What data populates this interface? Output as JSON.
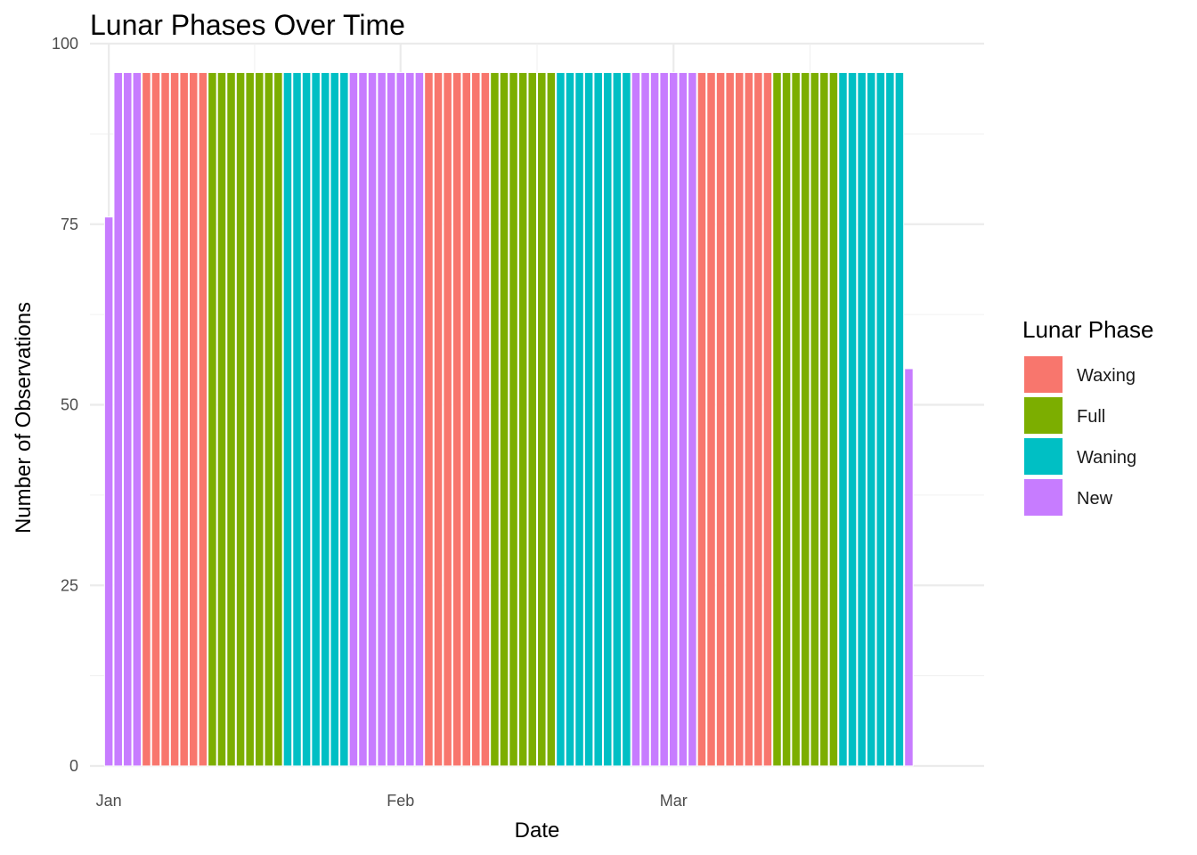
{
  "chart_data": {
    "type": "bar",
    "title": "Lunar Phases Over Time",
    "xlabel": "Date",
    "ylabel": "Number of Observations",
    "ylim": [
      0,
      100
    ],
    "y_ticks": [
      0,
      25,
      50,
      75,
      100
    ],
    "x_ticks": [
      {
        "date": "2024-01-01",
        "label": "Jan"
      },
      {
        "date": "2024-02-01",
        "label": "Feb"
      },
      {
        "date": "2024-03-01",
        "label": "Mar"
      }
    ],
    "x_range": [
      "2023-12-30",
      "2024-04-03"
    ],
    "grid": true,
    "legend": {
      "title": "Lunar Phase",
      "placement": "right",
      "entries": [
        "Waxing",
        "Full",
        "Waning",
        "New"
      ]
    },
    "colors": {
      "Waxing": "#F8766D",
      "Full": "#7CAE00",
      "Waning": "#00BFC4",
      "New": "#C77CFF"
    },
    "series": [
      {
        "name": "New",
        "x": [
          "2024-01-01",
          "2024-01-02",
          "2024-01-03",
          "2024-01-04"
        ],
        "values": [
          76,
          96,
          96,
          96
        ]
      },
      {
        "name": "Waxing",
        "x": [
          "2024-01-05",
          "2024-01-06",
          "2024-01-07",
          "2024-01-08",
          "2024-01-09",
          "2024-01-10",
          "2024-01-11"
        ],
        "values": [
          96,
          96,
          96,
          96,
          96,
          96,
          96
        ]
      },
      {
        "name": "Full",
        "x": [
          "2024-01-12",
          "2024-01-13",
          "2024-01-14",
          "2024-01-15",
          "2024-01-16",
          "2024-01-17",
          "2024-01-18",
          "2024-01-19"
        ],
        "values": [
          96,
          96,
          96,
          96,
          96,
          96,
          96,
          96
        ]
      },
      {
        "name": "Waning",
        "x": [
          "2024-01-20",
          "2024-01-21",
          "2024-01-22",
          "2024-01-23",
          "2024-01-24",
          "2024-01-25",
          "2024-01-26"
        ],
        "values": [
          96,
          96,
          96,
          96,
          96,
          96,
          96
        ]
      },
      {
        "name": "New",
        "x": [
          "2024-01-27",
          "2024-01-28",
          "2024-01-29",
          "2024-01-30",
          "2024-01-31",
          "2024-02-01",
          "2024-02-02",
          "2024-02-03"
        ],
        "values": [
          96,
          96,
          96,
          96,
          96,
          96,
          96,
          96
        ]
      },
      {
        "name": "Waxing",
        "x": [
          "2024-02-04",
          "2024-02-05",
          "2024-02-06",
          "2024-02-07",
          "2024-02-08",
          "2024-02-09",
          "2024-02-10"
        ],
        "values": [
          96,
          96,
          96,
          96,
          96,
          96,
          96
        ]
      },
      {
        "name": "Full",
        "x": [
          "2024-02-11",
          "2024-02-12",
          "2024-02-13",
          "2024-02-14",
          "2024-02-15",
          "2024-02-16",
          "2024-02-17"
        ],
        "values": [
          96,
          96,
          96,
          96,
          96,
          96,
          96
        ]
      },
      {
        "name": "Waning",
        "x": [
          "2024-02-18",
          "2024-02-19",
          "2024-02-20",
          "2024-02-21",
          "2024-02-22",
          "2024-02-23",
          "2024-02-24",
          "2024-02-25"
        ],
        "values": [
          96,
          96,
          96,
          96,
          96,
          96,
          96,
          96
        ]
      },
      {
        "name": "New",
        "x": [
          "2024-02-26",
          "2024-02-27",
          "2024-02-28",
          "2024-02-29",
          "2024-03-01",
          "2024-03-02",
          "2024-03-03"
        ],
        "values": [
          96,
          96,
          96,
          96,
          96,
          96,
          96
        ]
      },
      {
        "name": "Waxing",
        "x": [
          "2024-03-04",
          "2024-03-05",
          "2024-03-06",
          "2024-03-07",
          "2024-03-08",
          "2024-03-09",
          "2024-03-10",
          "2024-03-11"
        ],
        "values": [
          96,
          96,
          96,
          96,
          96,
          96,
          96,
          96
        ]
      },
      {
        "name": "Full",
        "x": [
          "2024-03-12",
          "2024-03-13",
          "2024-03-14",
          "2024-03-15",
          "2024-03-16",
          "2024-03-17",
          "2024-03-18"
        ],
        "values": [
          96,
          96,
          96,
          96,
          96,
          96,
          96
        ]
      },
      {
        "name": "Waning",
        "x": [
          "2024-03-19",
          "2024-03-20",
          "2024-03-21",
          "2024-03-22",
          "2024-03-23",
          "2024-03-24",
          "2024-03-25"
        ],
        "values": [
          96,
          96,
          96,
          96,
          96,
          96,
          96
        ]
      },
      {
        "name": "New",
        "x": [
          "2024-03-26"
        ],
        "values": [
          55
        ]
      }
    ]
  }
}
